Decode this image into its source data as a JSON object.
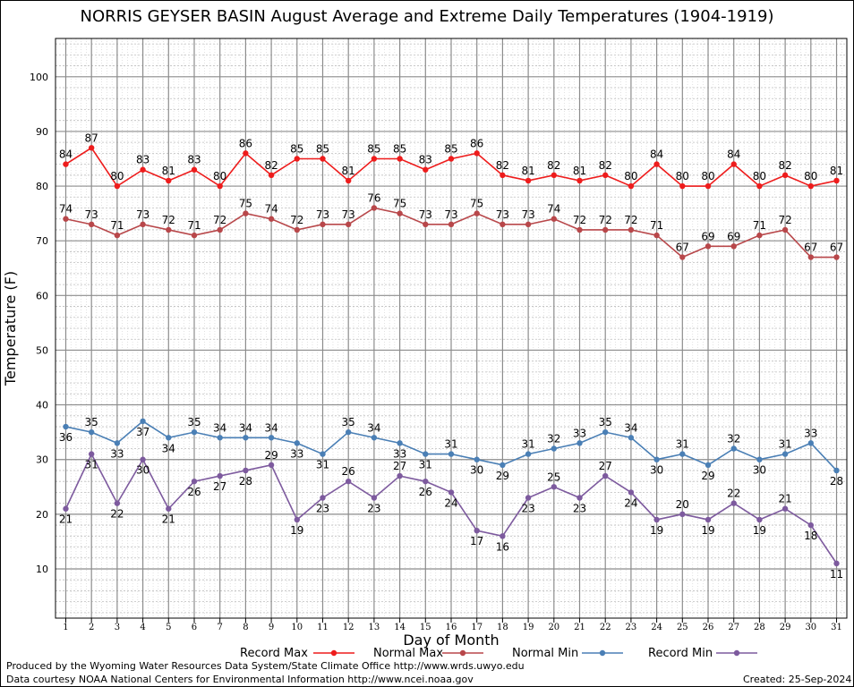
{
  "title": "NORRIS GEYSER BASIN August Average and Extreme Daily Temperatures (1904-1919)",
  "footer": {
    "produced_by": "Produced by the Wyoming Water Resources Data System/State Climate Office http://www.wrds.uwyo.edu",
    "courtesy": "Data courtesy NOAA National Centers for Environmental Information http://www.ncei.noaa.gov",
    "created": "Created:  25-Sep-2024"
  },
  "chart_data": {
    "type": "line",
    "title": "NORRIS GEYSER BASIN August Average and Extreme Daily Temperatures (1904-1919)",
    "xlabel": "Day of Month",
    "ylabel": "Temperature (F)",
    "x": [
      1,
      2,
      3,
      4,
      5,
      6,
      7,
      8,
      9,
      10,
      11,
      12,
      13,
      14,
      15,
      16,
      17,
      18,
      19,
      20,
      21,
      22,
      23,
      24,
      25,
      26,
      27,
      28,
      29,
      30,
      31
    ],
    "xlim": [
      0.6,
      31.4
    ],
    "ylim": [
      1,
      107
    ],
    "yticks": [
      10,
      20,
      30,
      40,
      50,
      60,
      70,
      80,
      90,
      100
    ],
    "grid": true,
    "legend_position": "bottom",
    "series": [
      {
        "name": "Record Max",
        "color": "#ee1c1c",
        "values": [
          84,
          87,
          80,
          83,
          81,
          83,
          80,
          86,
          82,
          85,
          85,
          81,
          85,
          85,
          83,
          85,
          86,
          82,
          81,
          82,
          81,
          82,
          80,
          84,
          80,
          80,
          84,
          80,
          82,
          80,
          81
        ]
      },
      {
        "name": "Normal Max",
        "color": "#b8474a",
        "values": [
          74,
          73,
          71,
          73,
          72,
          71,
          72,
          75,
          74,
          72,
          73,
          73,
          76,
          75,
          73,
          73,
          75,
          73,
          73,
          74,
          72,
          72,
          72,
          71,
          67,
          69,
          69,
          71,
          72,
          67,
          67
        ]
      },
      {
        "name": "Normal Min",
        "color": "#4a7fb5",
        "values": [
          36,
          35,
          33,
          37,
          34,
          35,
          34,
          34,
          34,
          33,
          31,
          35,
          34,
          33,
          31,
          31,
          30,
          29,
          31,
          32,
          33,
          35,
          34,
          30,
          31,
          29,
          32,
          30,
          31,
          33,
          28
        ]
      },
      {
        "name": "Record Min",
        "color": "#7d5a9e",
        "values": [
          21,
          31,
          22,
          30,
          21,
          26,
          27,
          28,
          29,
          19,
          23,
          26,
          23,
          27,
          26,
          24,
          17,
          16,
          23,
          25,
          23,
          27,
          24,
          19,
          20,
          19,
          22,
          19,
          21,
          18,
          11
        ]
      }
    ]
  }
}
